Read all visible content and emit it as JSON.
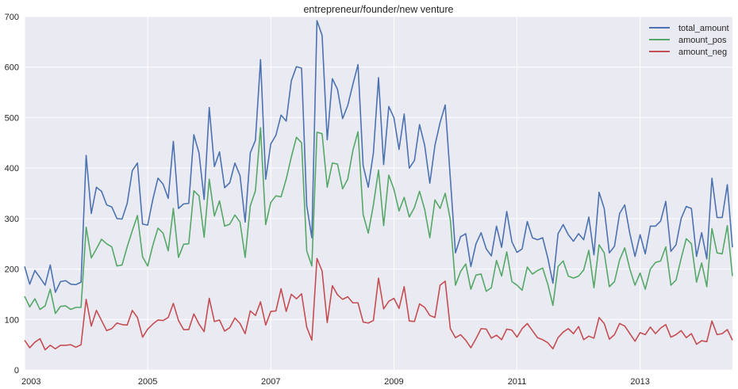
{
  "chart_data": {
    "type": "line",
    "title": "entrepreneur/founder/new venture",
    "xlabel": "",
    "ylabel": "",
    "x_start": "2003-01",
    "x_tick_labels": [
      "2003",
      "2005",
      "2007",
      "2009",
      "2011",
      "2013"
    ],
    "x_tick_years": [
      2003,
      2005,
      2007,
      2009,
      2011,
      2013
    ],
    "ylim": [
      0,
      700
    ],
    "y_ticks": [
      0,
      100,
      200,
      300,
      400,
      500,
      600,
      700
    ],
    "grid": true,
    "legend_position": "top-right",
    "series": [
      {
        "name": "total_amount",
        "color": "#4c72b0",
        "values": [
          205,
          170,
          197,
          183,
          168,
          208,
          154,
          175,
          177,
          170,
          169,
          174,
          425,
          310,
          362,
          354,
          327,
          323,
          300,
          299,
          330,
          395,
          410,
          289,
          287,
          338,
          380,
          368,
          340,
          453,
          320,
          329,
          330,
          466,
          430,
          338,
          520,
          403,
          432,
          361,
          371,
          410,
          385,
          293,
          430,
          455,
          615,
          378,
          448,
          465,
          505,
          493,
          573,
          601,
          598,
          326,
          262,
          692,
          663,
          456,
          577,
          556,
          498,
          524,
          566,
          605,
          405,
          362,
          430,
          579,
          407,
          522,
          500,
          437,
          507,
          400,
          415,
          486,
          445,
          370,
          445,
          490,
          525,
          380,
          232,
          264,
          270,
          205,
          250,
          272,
          240,
          226,
          285,
          243,
          314,
          254,
          233,
          240,
          294,
          262,
          258,
          262,
          222,
          172,
          270,
          288,
          268,
          255,
          270,
          258,
          303,
          228,
          352,
          320,
          232,
          245,
          310,
          327,
          270,
          225,
          268,
          230,
          285,
          285,
          295,
          334,
          235,
          248,
          300,
          324,
          320,
          225,
          272,
          220,
          380,
          302,
          302,
          367,
          243
        ]
      },
      {
        "name": "amount_pos",
        "color": "#55a868",
        "values": [
          146,
          125,
          141,
          120,
          127,
          160,
          112,
          126,
          127,
          120,
          124,
          124,
          283,
          222,
          240,
          259,
          250,
          244,
          206,
          208,
          244,
          276,
          306,
          224,
          206,
          247,
          281,
          271,
          236,
          320,
          223,
          249,
          250,
          355,
          345,
          263,
          378,
          305,
          335,
          285,
          289,
          307,
          293,
          223,
          325,
          355,
          480,
          288,
          332,
          345,
          343,
          378,
          422,
          461,
          450,
          236,
          206,
          471,
          468,
          362,
          410,
          408,
          359,
          378,
          435,
          472,
          308,
          271,
          327,
          396,
          286,
          386,
          358,
          315,
          342,
          303,
          322,
          354,
          318,
          262,
          337,
          320,
          350,
          298,
          168,
          195,
          210,
          160,
          188,
          190,
          156,
          163,
          217,
          186,
          234,
          175,
          168,
          158,
          204,
          190,
          197,
          202,
          170,
          128,
          205,
          216,
          186,
          182,
          186,
          198,
          237,
          163,
          248,
          232,
          165,
          175,
          218,
          242,
          200,
          168,
          192,
          160,
          200,
          213,
          216,
          244,
          168,
          178,
          221,
          260,
          250,
          174,
          212,
          165,
          280,
          232,
          230,
          286,
          186
        ]
      },
      {
        "name": "amount_neg",
        "color": "#c44e52",
        "values": [
          59,
          44,
          55,
          62,
          40,
          49,
          42,
          49,
          49,
          50,
          45,
          50,
          140,
          87,
          118,
          98,
          78,
          82,
          93,
          90,
          89,
          118,
          104,
          65,
          81,
          91,
          99,
          98,
          104,
          132,
          98,
          80,
          80,
          111,
          91,
          76,
          142,
          96,
          99,
          77,
          84,
          103,
          92,
          72,
          117,
          108,
          135,
          89,
          116,
          117,
          161,
          116,
          150,
          141,
          151,
          85,
          59,
          221,
          196,
          94,
          167,
          149,
          140,
          145,
          133,
          133,
          95,
          93,
          98,
          182,
          121,
          136,
          142,
          122,
          165,
          97,
          96,
          131,
          124,
          108,
          104,
          168,
          176,
          82,
          64,
          70,
          59,
          44,
          62,
          82,
          81,
          63,
          69,
          60,
          81,
          79,
          65,
          82,
          92,
          78,
          64,
          60,
          54,
          42,
          64,
          75,
          82,
          72,
          86,
          60,
          67,
          63,
          104,
          92,
          61,
          70,
          92,
          87,
          72,
          57,
          74,
          70,
          85,
          72,
          83,
          90,
          65,
          70,
          78,
          64,
          72,
          51,
          58,
          56,
          97,
          70,
          72,
          80,
          59
        ]
      }
    ]
  }
}
